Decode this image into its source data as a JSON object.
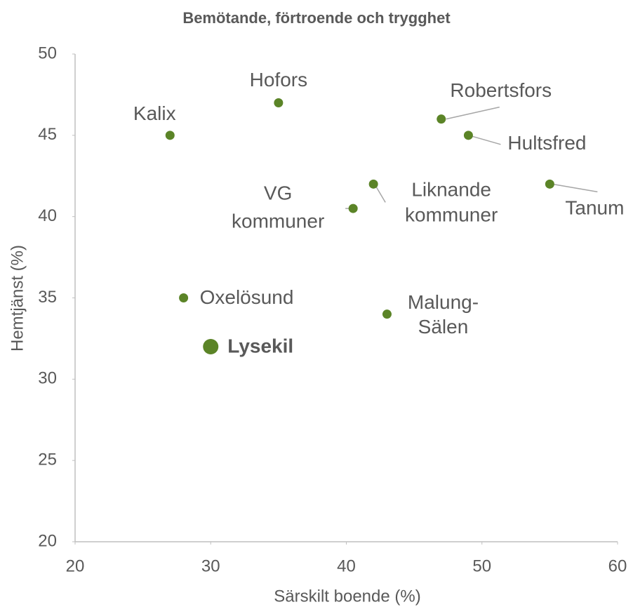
{
  "chart_data": {
    "type": "scatter",
    "title": "Bemötande, förtroende och trygghet",
    "x_label": "Särskilt boende (%)",
    "y_label": "Hemtjänst (%)",
    "labels": [
      [
        "Kalix"
      ],
      [
        "Hofors"
      ],
      [
        "Robertsfors"
      ],
      [
        "Hultsfred"
      ],
      [
        "Tanum"
      ],
      [
        "Liknande",
        "kommuner"
      ],
      [
        "VG",
        "kommuner"
      ],
      [
        "Oxelösund"
      ],
      [
        "Malung-",
        "Sälen"
      ],
      [
        "Lysekil"
      ]
    ],
    "x": [
      27,
      35,
      47,
      49,
      55,
      42,
      40.5,
      28,
      43,
      30
    ],
    "y": [
      45,
      47,
      46,
      45,
      42,
      42,
      40.5,
      35,
      34,
      32
    ],
    "color": "#5b8427",
    "highlight": "Lysekil",
    "xlim": [
      20,
      60
    ],
    "xticks": [
      20,
      30,
      40,
      50,
      60
    ],
    "ylim": [
      20,
      50
    ],
    "yticks": [
      20,
      25,
      30,
      35,
      40,
      45,
      50
    ],
    "grid": false
  }
}
